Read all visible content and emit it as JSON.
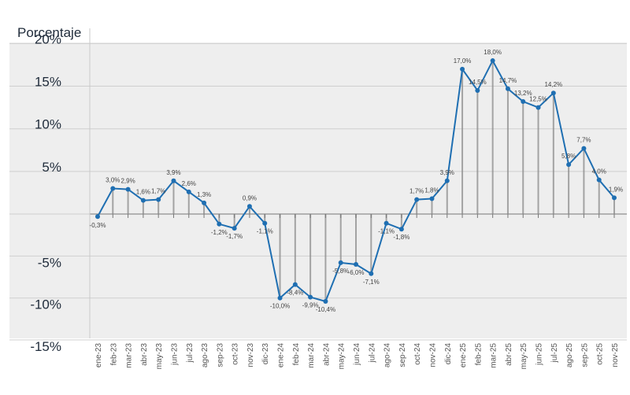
{
  "chart_data": {
    "type": "line",
    "ylabel": "Porcentaje",
    "yticks": [
      {
        "value": 20,
        "label": "20%"
      },
      {
        "value": 15,
        "label": "15%"
      },
      {
        "value": 10,
        "label": "10%"
      },
      {
        "value": 5,
        "label": "5%"
      },
      {
        "value": -5,
        "label": "-5%"
      },
      {
        "value": -10,
        "label": "-10%"
      },
      {
        "value": -15,
        "label": "-15%"
      }
    ],
    "ylim": [
      -15,
      20
    ],
    "grid": true,
    "line_color": "#1f6fb2",
    "categories": [
      "ene-23",
      "feb-23",
      "mar-23",
      "abr-23",
      "may-23",
      "jun-23",
      "jul-23",
      "ago-23",
      "sep-23",
      "oct-23",
      "nov-23",
      "dic-23",
      "ene-24",
      "feb-24",
      "mar-24",
      "abr-24",
      "may-24",
      "jun-24",
      "jul-24",
      "ago-24",
      "sep-24",
      "oct-24",
      "nov-24",
      "dic-24",
      "ene-25",
      "feb-25",
      "mar-25",
      "abr-25",
      "may-25",
      "jun-25",
      "jul-25",
      "ago-25",
      "sep-25",
      "oct-25",
      "nov-25"
    ],
    "series": [
      {
        "values": [
          -0.3,
          3.0,
          2.9,
          1.6,
          1.7,
          3.9,
          2.6,
          1.3,
          -1.2,
          -1.7,
          0.9,
          -1.1,
          -10.0,
          -8.4,
          -9.9,
          -10.4,
          -5.8,
          -6.0,
          -7.1,
          -1.1,
          -1.8,
          1.7,
          1.8,
          3.9,
          17.0,
          14.5,
          18.0,
          14.7,
          13.2,
          12.5,
          14.2,
          5.8,
          7.7,
          4.0,
          1.9
        ],
        "labels": [
          "-0,3%",
          "3,0%",
          "2,9%",
          "1,6%",
          "1,7%",
          "3,9%",
          "2,6%",
          "1,3%",
          "-1,2%",
          "-1,7%",
          "0,9%",
          "-1,1%",
          "-10,0%",
          "-8,4%",
          "-9,9%",
          "-10,4%",
          "-5,8%",
          "-6,0%",
          "-7,1%",
          "-1,1%",
          "-1,8%",
          "1,7%",
          "1,8%",
          "3,9%",
          "17,0%",
          "14,5%",
          "18,0%",
          "14,7%",
          "13,2%",
          "12,5%",
          "14,2%",
          "5,8%",
          "7,7%",
          "4,0%",
          "1,9%"
        ]
      }
    ]
  }
}
